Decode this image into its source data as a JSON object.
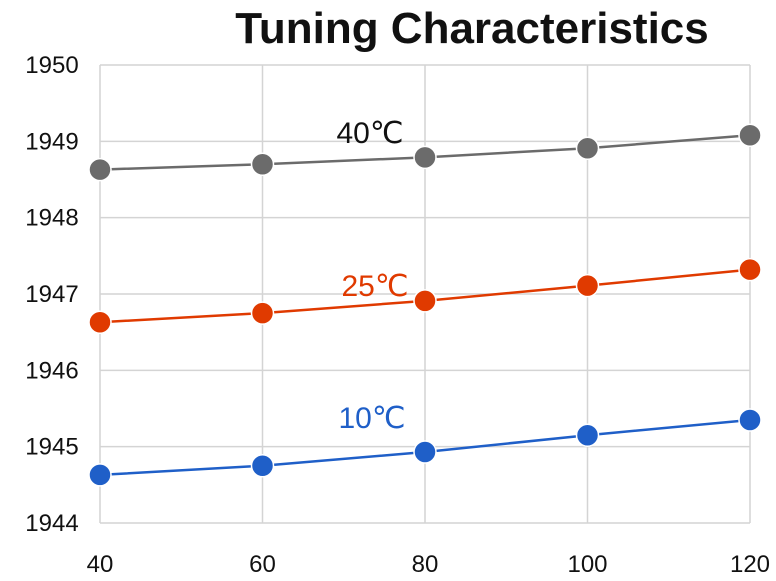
{
  "chart_data": {
    "type": "line",
    "title": "Tuning Characteristics",
    "xlabel": "",
    "ylabel": "",
    "x": [
      40,
      60,
      80,
      100,
      120
    ],
    "xlim": [
      40,
      120
    ],
    "ylim": [
      1944,
      1950
    ],
    "x_ticks": [
      "40",
      "60",
      "80",
      "100",
      "120"
    ],
    "y_ticks": [
      "1944",
      "1945",
      "1946",
      "1947",
      "1948",
      "1949",
      "1950"
    ],
    "grid": true,
    "legend": "none",
    "series": [
      {
        "name": "40℃",
        "color": "#6b6b6b",
        "values": [
          1948.63,
          1948.7,
          1948.79,
          1948.91,
          1949.08
        ]
      },
      {
        "name": "25℃",
        "color": "#e03a00",
        "values": [
          1946.63,
          1946.75,
          1946.91,
          1947.11,
          1947.32
        ]
      },
      {
        "name": "10℃",
        "color": "#1f5fc8",
        "values": [
          1944.63,
          1944.75,
          1944.93,
          1945.15,
          1945.35
        ]
      }
    ]
  }
}
